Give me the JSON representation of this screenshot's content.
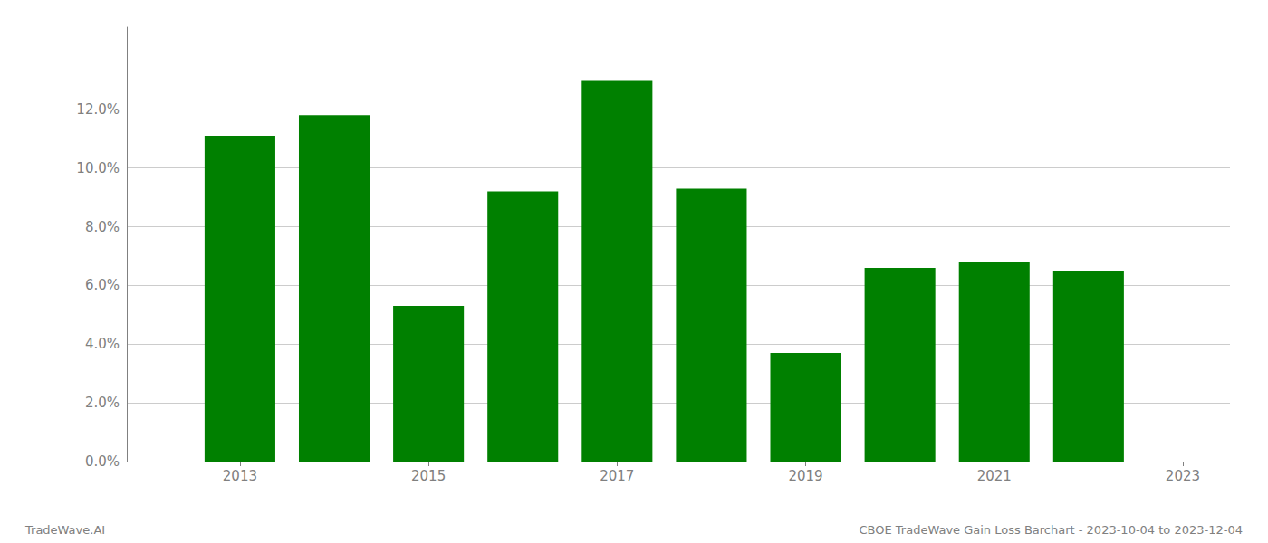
{
  "chart_data": {
    "type": "bar",
    "x": [
      2013,
      2014,
      2015,
      2016,
      2017,
      2018,
      2019,
      2020,
      2021,
      2022
    ],
    "values": [
      0.111,
      0.118,
      0.053,
      0.092,
      0.13,
      0.093,
      0.037,
      0.066,
      0.068,
      0.065
    ],
    "color": "#008000",
    "xlim": [
      2011.8,
      2023.5
    ],
    "xticks": [
      2013,
      2015,
      2017,
      2019,
      2021,
      2023
    ],
    "ylim": [
      0,
      0.148
    ],
    "yticks": [
      {
        "value": 0.0,
        "label": "0.0%"
      },
      {
        "value": 0.02,
        "label": "2.0%"
      },
      {
        "value": 0.04,
        "label": "4.0%"
      },
      {
        "value": 0.06,
        "label": "6.0%"
      },
      {
        "value": 0.08,
        "label": "8.0%"
      },
      {
        "value": 0.1,
        "label": "10.0%"
      },
      {
        "value": 0.12,
        "label": "12.0%"
      }
    ],
    "grid": true,
    "annotations": [
      "TradeWave.AI",
      "CBOE TradeWave Gain Loss Barchart - 2023-10-04 to 2023-12-04"
    ]
  }
}
